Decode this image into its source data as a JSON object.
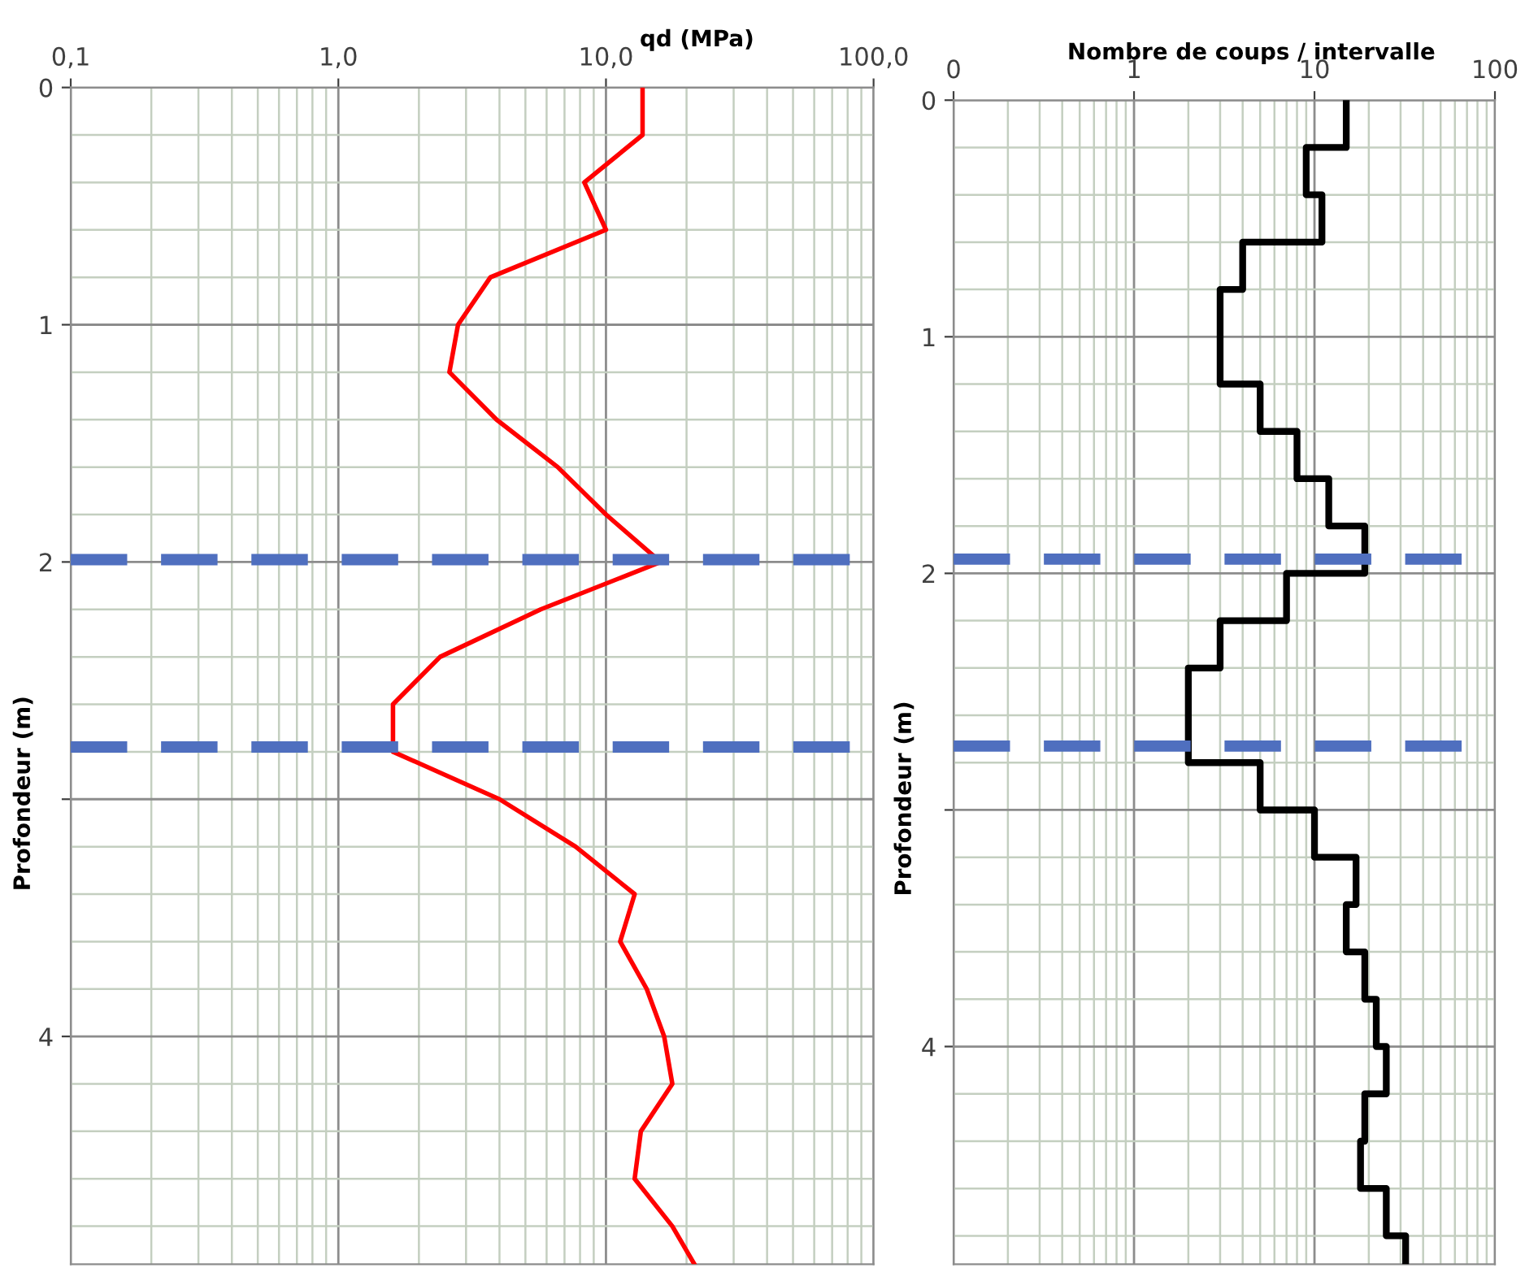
{
  "chart_data": [
    {
      "type": "line",
      "orientation": "horizontal",
      "log": "x",
      "xlabel": "qd (MPa)",
      "ylabel": "Profondeur (m)",
      "xlim": [
        0.1,
        100
      ],
      "xticks": [
        {
          "value": 0.1,
          "label": "0,1"
        },
        {
          "value": 1,
          "label": "1,0"
        },
        {
          "value": 10,
          "label": "10,0"
        },
        {
          "value": 100,
          "label": "100,0"
        }
      ],
      "ylim": [
        4.96,
        0
      ],
      "yticks": [
        0,
        1,
        2,
        {
          "value": 3,
          "label": null
        },
        4
      ],
      "grid": true,
      "line_style": "solid",
      "marker": "none",
      "series": [
        {
          "color": "#ff0000",
          "x": [
            0,
            0.2,
            0.4,
            0.6,
            0.8,
            1.0,
            1.2,
            1.4,
            1.6,
            1.8,
            2.0,
            2.2,
            2.4,
            2.6,
            2.8,
            3.0,
            3.2,
            3.4,
            3.6,
            3.8,
            4.0,
            4.2,
            4.4,
            4.6,
            4.8,
            4.96
          ],
          "values": [
            13.7,
            13.7,
            8.3,
            10,
            3.7,
            2.8,
            2.6,
            3.9,
            6.6,
            10,
            16,
            5.7,
            2.4,
            1.6,
            1.6,
            4,
            7.7,
            12.8,
            11.3,
            14.2,
            16.5,
            17.7,
            13.5,
            12.8,
            17.7,
            21.4
          ]
        }
      ],
      "ref_lines": [
        {
          "axis": "y",
          "value": 1.99,
          "color": "#4f6fbf",
          "line_style": "dashed"
        },
        {
          "axis": "y",
          "value": 2.78,
          "color": "#4f6fbf",
          "line_style": "dashed"
        }
      ]
    },
    {
      "type": "step",
      "orientation": "horizontal",
      "log": "x",
      "xlabel": "Nombre de coups / intervalle",
      "ylabel": "Profondeur (m)",
      "xlim": [
        0.1,
        100
      ],
      "xticks": [
        {
          "value": 0.1,
          "label": "0"
        },
        1,
        10,
        100
      ],
      "ylim": [
        4.92,
        0
      ],
      "yticks": [
        0,
        1,
        2,
        {
          "value": 3,
          "label": null
        },
        4
      ],
      "grid": true,
      "line_style": "solid",
      "marker": "none",
      "series": [
        {
          "color": "#000000",
          "x": [
            0,
            0.2,
            0.4,
            0.6,
            0.8,
            1.0,
            1.2,
            1.4,
            1.6,
            1.8,
            2.0,
            2.2,
            2.4,
            2.6,
            2.8,
            3.0,
            3.2,
            3.4,
            3.6,
            3.8,
            4.0,
            4.2,
            4.4,
            4.6,
            4.8,
            4.92
          ],
          "values": [
            15,
            9,
            11,
            4,
            3,
            3,
            5,
            8,
            12,
            19,
            7,
            3,
            2,
            2,
            5,
            10,
            17,
            15,
            19,
            22,
            25,
            19,
            18,
            25,
            32,
            32
          ]
        }
      ],
      "ref_lines": [
        {
          "axis": "y",
          "value": 1.94,
          "color": "#4f6fbf",
          "line_style": "dashed"
        },
        {
          "axis": "y",
          "value": 2.73,
          "color": "#4f6fbf",
          "line_style": "dashed"
        }
      ]
    }
  ]
}
